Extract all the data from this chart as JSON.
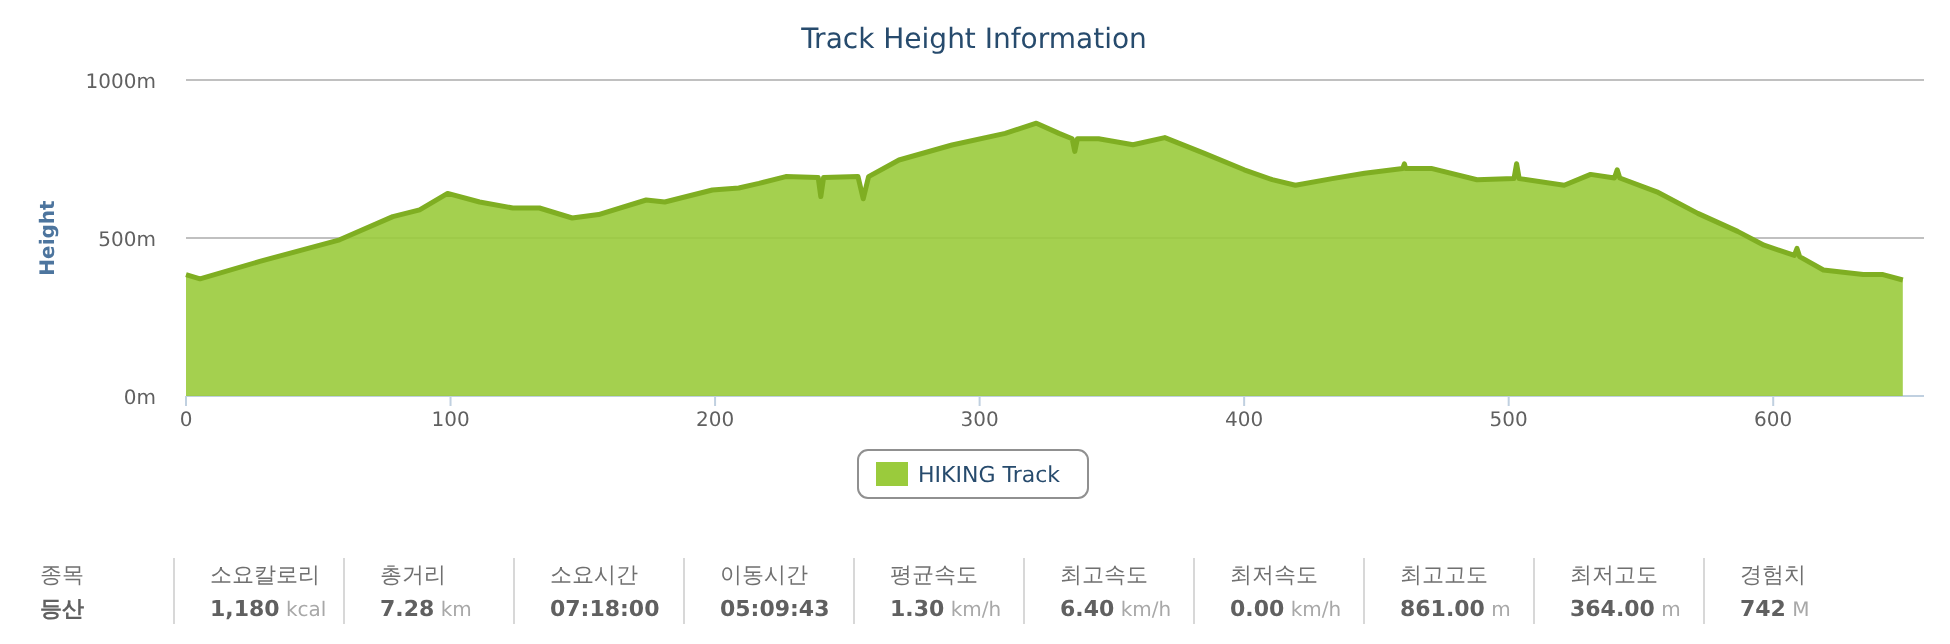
{
  "chart_data": [
    {
      "type": "area",
      "title": "Track Height Information",
      "ylabel": "Height",
      "x": [
        0,
        5.3,
        27.9,
        58.1,
        78.2,
        88.3,
        98.9,
        111,
        123.5,
        133.6,
        146,
        156,
        174,
        181,
        199,
        209,
        216.6,
        226.7,
        239,
        240,
        241,
        254,
        256,
        258,
        269.5,
        289.6,
        309.7,
        321.5,
        330,
        335,
        336,
        337,
        345,
        358,
        370,
        385,
        400,
        410.6,
        419.4,
        433.3,
        445.5,
        460,
        460.6,
        461,
        470.7,
        488,
        502,
        503,
        504,
        521,
        531,
        540,
        541,
        542,
        556,
        571.5,
        586.5,
        596.5,
        608,
        609,
        610,
        619,
        634,
        641.5,
        649
      ],
      "series": [
        {
          "name": "HIKING Track",
          "color": "#9acb3c",
          "values": [
            384,
            371,
            426,
            494,
            568,
            589,
            641,
            614,
            595,
            595,
            563,
            574,
            620,
            614,
            652,
            658,
            673,
            694,
            692,
            631,
            692,
            694,
            624,
            694,
            747,
            794,
            831,
            863,
            831,
            814,
            774,
            814,
            814,
            795,
            818,
            768,
            716,
            685,
            667,
            688,
            705,
            720,
            735,
            720,
            720,
            684,
            688,
            735,
            688,
            667,
            701,
            690,
            716,
            690,
            646,
            578,
            521,
            477,
            445,
            467,
            441,
            399,
            384,
            384,
            367
          ]
        }
      ],
      "xlim": [
        0,
        657
      ],
      "xticks": [
        0,
        100,
        200,
        300,
        400,
        500,
        600
      ],
      "ylim": [
        0,
        1000
      ],
      "yticks": [
        {
          "value": 0,
          "label": "0m"
        },
        {
          "value": 500,
          "label": "500m"
        },
        {
          "value": 1000,
          "label": "1000m"
        }
      ],
      "grid": "y",
      "legend": "bottom",
      "marker": "none"
    },
    {
      "type": "other",
      "categories": [
        "종목",
        "소요칼로리",
        "총거리",
        "소요시간",
        "이동시간",
        "평균속도",
        "최고속도",
        "최저속도",
        "최고고도",
        "최저고도",
        "경험치"
      ],
      "annotations": [
        "등산",
        "1,180 kcal",
        "7.28 km",
        "07:18:00",
        "05:09:43",
        "1.30 km/h",
        "6.40 km/h",
        "0.00 km/h",
        "861.00 m",
        "364.00 m",
        "742 M"
      ]
    }
  ]
}
